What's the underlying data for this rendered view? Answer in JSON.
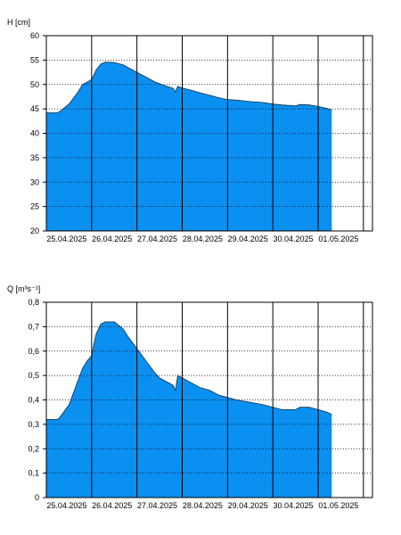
{
  "chart_data": [
    {
      "type": "area",
      "ylabel": "H [cm]",
      "ylim": [
        20,
        60
      ],
      "yticks": [
        "20",
        "25",
        "30",
        "35",
        "40",
        "45",
        "50",
        "55",
        "60"
      ],
      "xlabels": [
        "25.04.2025",
        "26.04.2025",
        "27.04.2025",
        "28.04.2025",
        "29.04.2025",
        "30.04.2025",
        "01.05.2025"
      ],
      "xlim": [
        0,
        7.2
      ],
      "fill_color": "#0a90f0",
      "grid": true,
      "series": [
        {
          "x": [
            0,
            0.25,
            0.3,
            0.5,
            0.7,
            0.8,
            0.9,
            1.0,
            1.05,
            1.1,
            1.2,
            1.3,
            1.5,
            1.7,
            1.8,
            2.0,
            2.2,
            2.4,
            2.5,
            2.6,
            2.8,
            2.85,
            2.9,
            3.0,
            3.2,
            3.4,
            3.6,
            3.8,
            4.0,
            4.2,
            4.5,
            4.8,
            5.0,
            5.2,
            5.5,
            5.6,
            5.8,
            6.0,
            6.2,
            6.3
          ],
          "y": [
            44.2,
            44.2,
            44.5,
            46,
            48.5,
            50,
            50.5,
            51,
            52,
            53,
            54.2,
            54.6,
            54.5,
            54.0,
            53.5,
            52.5,
            51.5,
            50.5,
            50.2,
            49.8,
            49.2,
            48.5,
            49.6,
            49.3,
            48.8,
            48.3,
            47.8,
            47.3,
            46.9,
            46.8,
            46.5,
            46.3,
            46,
            45.8,
            45.6,
            45.9,
            45.8,
            45.5,
            45.1,
            44.8
          ]
        }
      ]
    },
    {
      "type": "area",
      "ylabel": "Q [m³s⁻¹]",
      "ylim": [
        0,
        0.8
      ],
      "yticks": [
        "0",
        "0,1",
        "0,2",
        "0,3",
        "0,4",
        "0,5",
        "0,6",
        "0,7",
        "0,8"
      ],
      "xlabels": [
        "25.04.2025",
        "26.04.2025",
        "27.04.2025",
        "28.04.2025",
        "29.04.2025",
        "30.04.2025",
        "01.05.2025"
      ],
      "xlim": [
        0,
        7.2
      ],
      "fill_color": "#0a90f0",
      "grid": true,
      "series": [
        {
          "x": [
            0,
            0.25,
            0.3,
            0.5,
            0.7,
            0.8,
            0.9,
            1.0,
            1.05,
            1.1,
            1.2,
            1.3,
            1.5,
            1.7,
            1.8,
            2.0,
            2.2,
            2.4,
            2.5,
            2.6,
            2.8,
            2.85,
            2.9,
            3.0,
            3.2,
            3.4,
            3.6,
            3.8,
            4.0,
            4.2,
            4.5,
            4.8,
            5.0,
            5.2,
            5.5,
            5.6,
            5.8,
            6.0,
            6.2,
            6.3
          ],
          "y": [
            0.32,
            0.32,
            0.33,
            0.38,
            0.48,
            0.53,
            0.56,
            0.58,
            0.63,
            0.67,
            0.71,
            0.72,
            0.72,
            0.69,
            0.66,
            0.61,
            0.56,
            0.51,
            0.49,
            0.48,
            0.46,
            0.44,
            0.5,
            0.49,
            0.47,
            0.45,
            0.44,
            0.42,
            0.41,
            0.4,
            0.39,
            0.38,
            0.37,
            0.36,
            0.36,
            0.37,
            0.37,
            0.36,
            0.35,
            0.34
          ]
        }
      ]
    }
  ]
}
